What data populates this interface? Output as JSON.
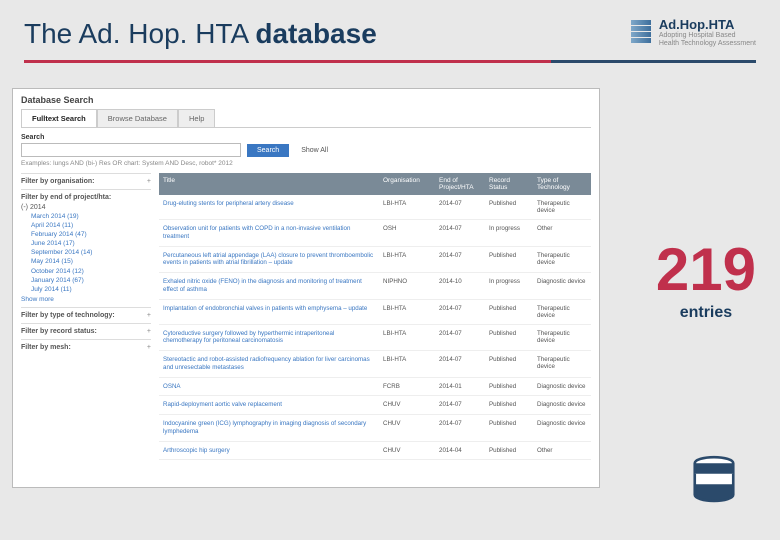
{
  "slide": {
    "title_pre": "The Ad. Hop. HTA ",
    "title_bold": "database"
  },
  "logo": {
    "main_pre": "Ad.Hop.",
    "main_bold": "HTA",
    "sub1": "Adopting Hospital Based",
    "sub2": "Health Technology Assessment"
  },
  "counter": {
    "value": "219",
    "label": "entries"
  },
  "db": {
    "heading": "Database Search",
    "tabs": {
      "fulltext": "Fulltext Search",
      "browse": "Browse Database",
      "help": "Help"
    },
    "search": {
      "label": "Search",
      "placeholder": "",
      "button": "Search",
      "show_all": "Show All",
      "example": "Examples: lungs AND (bi-) Res OR chart: System AND Desc, robot* 2012"
    },
    "filters": {
      "org": "Filter by organisation:",
      "year": "Filter by end of project/hta:",
      "year_root": "(-) 2014",
      "months": [
        "March 2014 (19)",
        "April 2014 (11)",
        "February 2014 (47)",
        "June 2014 (17)",
        "September 2014 (14)",
        "May 2014 (15)",
        "October 2014 (12)",
        "January 2014 (67)",
        "July 2014 (11)"
      ],
      "show_more": "Show more",
      "tech": "Filter by type of technology:",
      "record": "Filter by record status:",
      "mesh": "Filter by mesh:"
    },
    "columns": {
      "title": "Title",
      "org": "Organisation",
      "end": "End of Project/HTA",
      "status": "Record Status",
      "type": "Type of Technology"
    },
    "rows": [
      {
        "title": "Drug-eluting stents for peripheral artery disease",
        "org": "LBI-HTA",
        "end": "2014-07",
        "status": "Published",
        "type": "Therapeutic device"
      },
      {
        "title": "Observation unit for patients with COPD in a non-invasive ventilation treatment",
        "org": "OSH",
        "end": "2014-07",
        "status": "In progress",
        "type": "Other"
      },
      {
        "title": "Percutaneous left atrial appendage (LAA) closure to prevent thromboembolic events in patients with atrial fibrillation – update",
        "org": "LBI-HTA",
        "end": "2014-07",
        "status": "Published",
        "type": "Therapeutic device"
      },
      {
        "title": "Exhaled nitric oxide (FENO) in the diagnosis and monitoring of treatment effect of asthma",
        "org": "NIPHNO",
        "end": "2014-10",
        "status": "In progress",
        "type": "Diagnostic device"
      },
      {
        "title": "Implantation of endobronchial valves in patients with emphysema – update",
        "org": "LBI-HTA",
        "end": "2014-07",
        "status": "Published",
        "type": "Therapeutic device"
      },
      {
        "title": "Cytoreductive surgery followed by hyperthermic intraperitoneal chemotherapy for peritoneal carcinomatosis",
        "org": "LBI-HTA",
        "end": "2014-07",
        "status": "Published",
        "type": "Therapeutic device"
      },
      {
        "title": "Stereotactic and robot-assisted radiofrequency ablation for liver carcinomas and unresectable metastases",
        "org": "LBI-HTA",
        "end": "2014-07",
        "status": "Published",
        "type": "Therapeutic device"
      },
      {
        "title": "OSNA",
        "org": "FCRB",
        "end": "2014-01",
        "status": "Published",
        "type": "Diagnostic device"
      },
      {
        "title": "Rapid-deployment aortic valve replacement",
        "org": "CHUV",
        "end": "2014-07",
        "status": "Published",
        "type": "Diagnostic device"
      },
      {
        "title": "Indocyanine green (ICG) lymphography in imaging diagnosis of secondary lymphedema",
        "org": "CHUV",
        "end": "2014-07",
        "status": "Published",
        "type": "Diagnostic device"
      },
      {
        "title": "Arthroscopic hip surgery",
        "org": "CHUV",
        "end": "2014-04",
        "status": "Published",
        "type": "Other"
      }
    ]
  }
}
